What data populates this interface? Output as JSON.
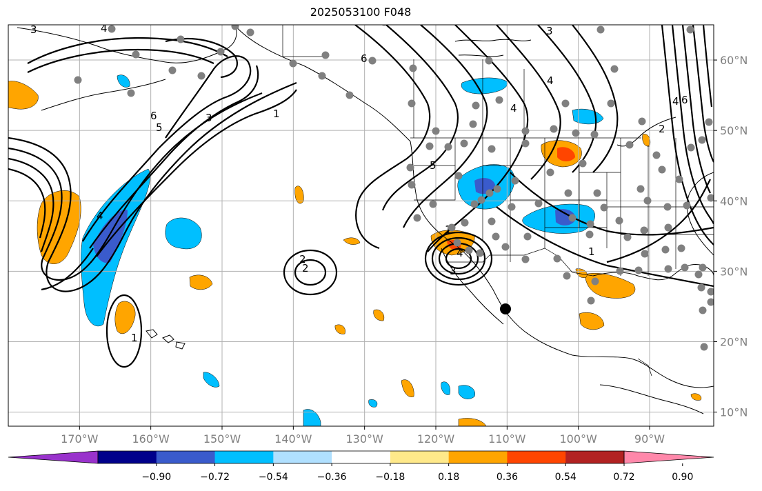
{
  "title": "2025053100 F048",
  "map": {
    "lon_range": [
      -180,
      -81
    ],
    "lat_range": [
      8,
      65
    ],
    "lon_ticks": [
      {
        "value": -170,
        "label": "170°W"
      },
      {
        "value": -160,
        "label": "160°W"
      },
      {
        "value": -150,
        "label": "150°W"
      },
      {
        "value": -140,
        "label": "140°W"
      },
      {
        "value": -130,
        "label": "130°W"
      },
      {
        "value": -120,
        "label": "120°W"
      },
      {
        "value": -110,
        "label": "110°W"
      },
      {
        "value": -100,
        "label": "100°W"
      },
      {
        "value": -90,
        "label": "90°W"
      }
    ],
    "lat_ticks": [
      {
        "value": 60,
        "label": "60°N"
      },
      {
        "value": 50,
        "label": "50°N"
      },
      {
        "value": 40,
        "label": "40°N"
      },
      {
        "value": 30,
        "label": "30°N"
      },
      {
        "value": 20,
        "label": "20°N"
      },
      {
        "value": 10,
        "label": "10°N"
      }
    ],
    "contour_labels": [
      "1",
      "2",
      "3",
      "4",
      "5",
      "6"
    ],
    "colors": {
      "frame": "#000000",
      "grid": "#b0b0b0",
      "station": "#808080"
    }
  },
  "colorbar": {
    "colors": [
      "#9932cc",
      "#00008b",
      "#3a5bcc",
      "#00bfff",
      "#b0e0ff",
      "#ffffff",
      "#ffe98a",
      "#ffa500",
      "#ff4500",
      "#b22222",
      "#ff88aa"
    ],
    "ticks": [
      "−0.90",
      "−0.72",
      "−0.54",
      "−0.36",
      "−0.18",
      "0.18",
      "0.36",
      "0.54",
      "0.72",
      "0.90"
    ]
  }
}
